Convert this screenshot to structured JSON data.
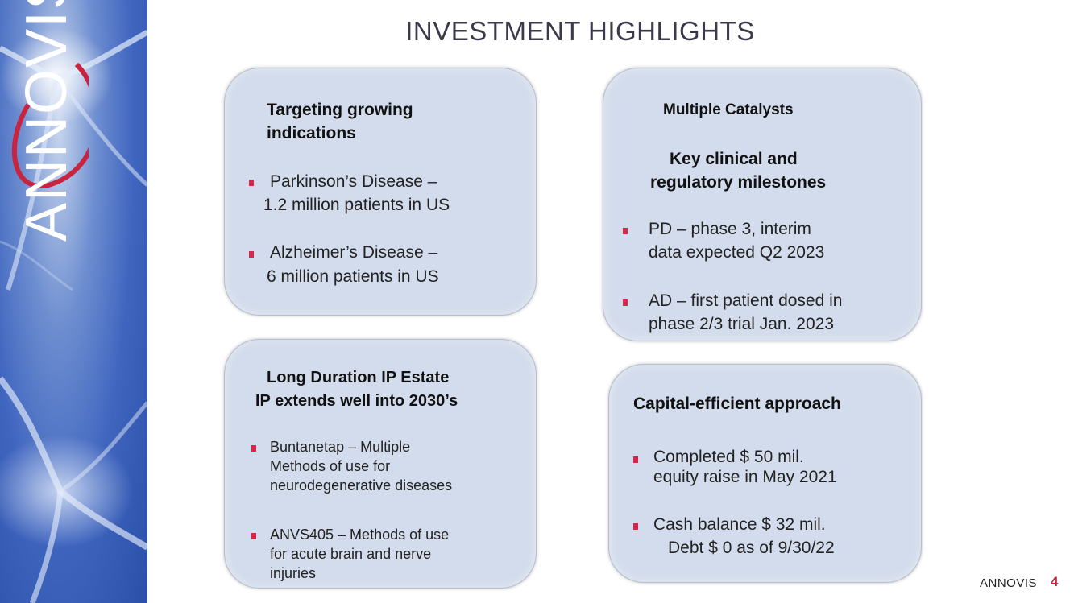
{
  "slide": {
    "title": "INVESTMENT HIGHLIGHTS",
    "brand_text": "ANNOVIS",
    "page_number": "4"
  },
  "colors": {
    "bullet_accent": "#d8264a",
    "card_fill": "#d3dcec",
    "sidebar_blue": "#3f65bf",
    "logo_red": "#c8233f"
  },
  "cards": {
    "indications": {
      "heading_line1": "Targeting growing",
      "heading_line2": "indications",
      "b1_line1": "Parkinson’s Disease –",
      "b1_line2": "1.2 million patients in US",
      "b2_line1": "Alzheimer’s Disease –",
      "b2_line2": "6 million patients in US"
    },
    "catalysts": {
      "heading": "Multiple Catalysts",
      "subheading_line1": "Key clinical and",
      "subheading_line2": "regulatory milestones",
      "b1_line1": "PD – phase 3, interim",
      "b1_line2": "data expected Q2 2023",
      "b2_line1": "AD – first patient dosed in",
      "b2_line2": "phase 2/3 trial Jan. 2023"
    },
    "ip": {
      "heading_line1": "Long Duration IP Estate",
      "heading_line2": "IP extends well into 2030’s",
      "b1_line1": "Buntanetap – Multiple",
      "b1_line2": "Methods of use for",
      "b1_line3": "neurodegenerative diseases",
      "b2_line1": "ANVS405 – Methods of use",
      "b2_line2": "for acute brain and nerve",
      "b2_line3": "injuries"
    },
    "capital": {
      "heading": "Capital-efficient approach",
      "b1_line1": "Completed $ 50 mil.",
      "b1_line2": "equity raise in May 2021",
      "b2_line1": "Cash balance $ 32 mil.",
      "b2_line2": "Debt $ 0 as of 9/30/22"
    }
  }
}
